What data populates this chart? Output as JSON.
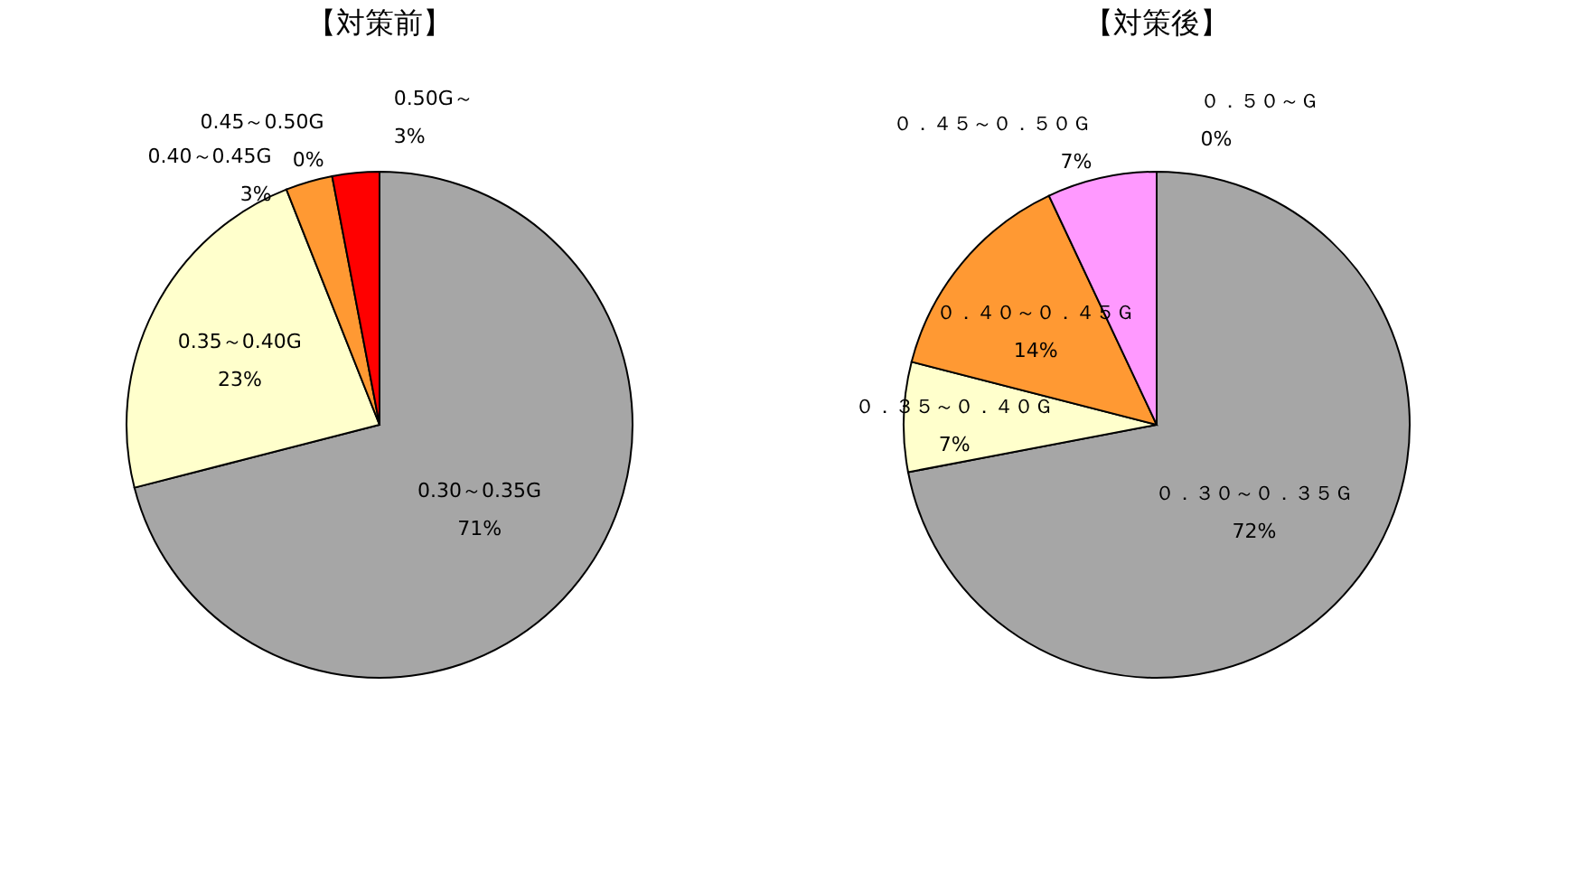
{
  "chart_data": [
    {
      "type": "pie",
      "title": "【対策前】",
      "categories": [
        "0.30～0.35G",
        "0.35～0.40G",
        "0.40～0.45G",
        "0.45～0.50G",
        "0.50G～"
      ],
      "values": [
        71,
        23,
        3,
        0,
        3
      ],
      "colors": [
        "#a6a6a6",
        "#ffffcc",
        "#ff9933",
        "#ff9933",
        "#ff0000"
      ],
      "value_labels": [
        "71%",
        "23%",
        "3%",
        "0%",
        "3%"
      ]
    },
    {
      "type": "pie",
      "title": "【対策後】",
      "categories": [
        "０．３０～０．３５Ｇ",
        "０．３５～０．４０Ｇ",
        "０．４０～０．４５Ｇ",
        "０．４５～０．５０Ｇ",
        "０．５０～Ｇ"
      ],
      "values": [
        72,
        7,
        14,
        7,
        0
      ],
      "colors": [
        "#a6a6a6",
        "#ffffcc",
        "#ff9933",
        "#ff99ff",
        "#ff0000"
      ],
      "value_labels": [
        "72%",
        "7%",
        "14%",
        "7%",
        "0%"
      ]
    }
  ]
}
